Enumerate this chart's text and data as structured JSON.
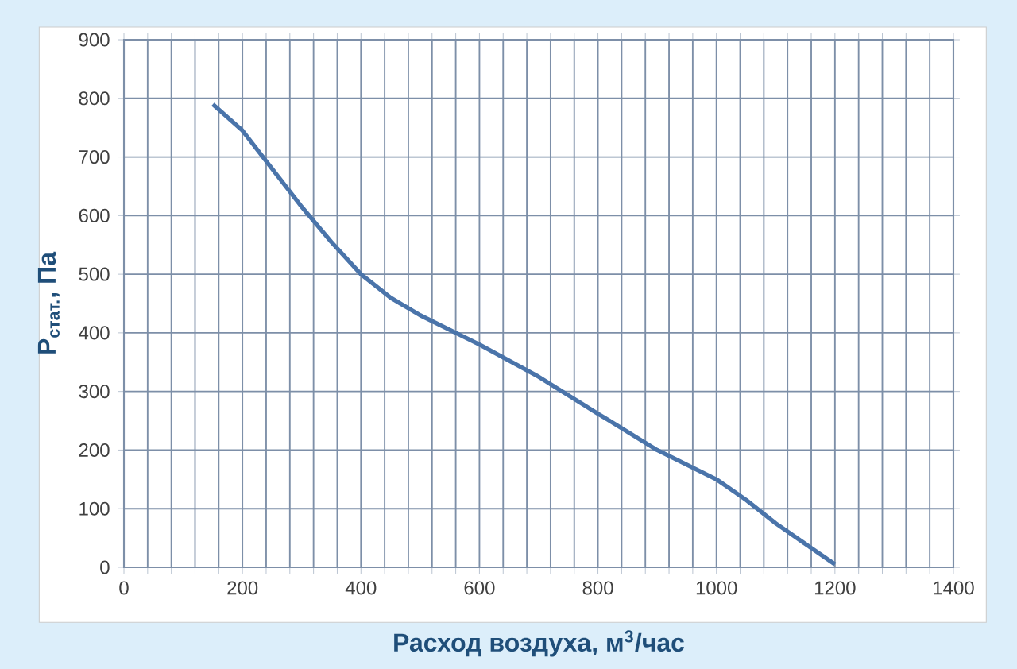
{
  "chart_data": {
    "type": "line",
    "xlabel": "Расход воздуха, м$^{3}$/час",
    "ylabel": "P$_{стат.}$, Па",
    "x": [
      150,
      200,
      250,
      300,
      350,
      400,
      450,
      500,
      560,
      600,
      700,
      800,
      900,
      1000,
      1050,
      1100,
      1150,
      1200
    ],
    "series": [
      {
        "color": "#4a74aa",
        "values": [
          790,
          745,
          680,
          615,
          555,
          500,
          460,
          430,
          400,
          380,
          325,
          262,
          200,
          150,
          115,
          75,
          40,
          5
        ]
      }
    ],
    "xlim": [
      0,
      1400
    ],
    "xticks": [
      0,
      {
        "value": 40,
        "label": null
      },
      {
        "value": 80,
        "label": null
      },
      {
        "value": 120,
        "label": null
      },
      {
        "value": 160,
        "label": null
      },
      200,
      {
        "value": 240,
        "label": null
      },
      {
        "value": 280,
        "label": null
      },
      {
        "value": 320,
        "label": null
      },
      {
        "value": 360,
        "label": null
      },
      400,
      {
        "value": 440,
        "label": null
      },
      {
        "value": 480,
        "label": null
      },
      {
        "value": 520,
        "label": null
      },
      {
        "value": 560,
        "label": null
      },
      600,
      {
        "value": 640,
        "label": null
      },
      {
        "value": 680,
        "label": null
      },
      {
        "value": 720,
        "label": null
      },
      {
        "value": 760,
        "label": null
      },
      800,
      {
        "value": 840,
        "label": null
      },
      {
        "value": 880,
        "label": null
      },
      {
        "value": 920,
        "label": null
      },
      {
        "value": 960,
        "label": null
      },
      1000,
      {
        "value": 1040,
        "label": null
      },
      {
        "value": 1080,
        "label": null
      },
      {
        "value": 1120,
        "label": null
      },
      {
        "value": 1160,
        "label": null
      },
      1200,
      {
        "value": 1240,
        "label": null
      },
      {
        "value": 1280,
        "label": null
      },
      {
        "value": 1320,
        "label": null
      },
      {
        "value": 1360,
        "label": null
      },
      1400
    ],
    "ylim": [
      0,
      900
    ],
    "yticks": [
      0,
      100,
      200,
      300,
      400,
      500,
      600,
      700,
      800,
      900
    ],
    "grid": true,
    "marker": "none",
    "line_style": "solid"
  }
}
